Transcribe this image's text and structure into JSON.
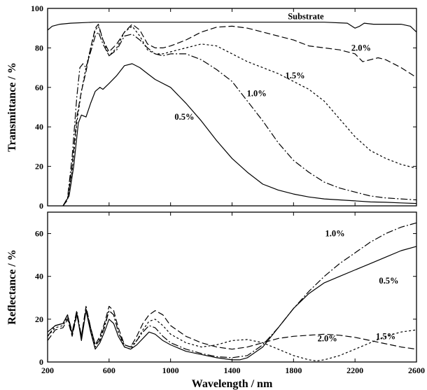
{
  "chart_data": [
    {
      "type": "line",
      "xlabel": "",
      "ylabel": "Transmittance / %",
      "xlim": [
        200,
        2600
      ],
      "ylim": [
        0,
        100
      ],
      "xticks": [
        200,
        600,
        1000,
        1400,
        1800,
        2200,
        2600
      ],
      "yticks": [
        0,
        20,
        40,
        60,
        80,
        100
      ],
      "xtick_labels_shown": false,
      "grid": false,
      "series": [
        {
          "name": "Substrate",
          "style": "solid",
          "x": [
            200,
            230,
            280,
            350,
            500,
            700,
            900,
            1200,
            1600,
            2000,
            2150,
            2200,
            2230,
            2260,
            2320,
            2400,
            2500,
            2560,
            2600
          ],
          "y": [
            89,
            91,
            92,
            92.5,
            93,
            93,
            93,
            93,
            93,
            93,
            92.5,
            90,
            91,
            92.5,
            92,
            92,
            92,
            91,
            88
          ]
        },
        {
          "name": "2.0%",
          "style": "long-dash",
          "x": [
            300,
            330,
            360,
            390,
            420,
            450,
            480,
            510,
            530,
            560,
            600,
            650,
            700,
            750,
            800,
            850,
            900,
            950,
            1000,
            1100,
            1200,
            1300,
            1400,
            1500,
            1600,
            1700,
            1800,
            1900,
            2000,
            2100,
            2200,
            2250,
            2300,
            2350,
            2400,
            2500,
            2600
          ],
          "y": [
            0,
            3,
            20,
            45,
            58,
            68,
            80,
            90,
            92,
            84,
            78,
            82,
            88,
            92,
            89,
            82,
            80,
            80,
            81,
            84,
            88,
            90.5,
            91,
            90,
            88,
            86,
            84,
            81,
            80,
            79,
            77,
            73,
            74,
            75,
            74,
            70,
            65
          ]
        },
        {
          "name": "1.5%",
          "style": "short-dash",
          "x": [
            300,
            330,
            360,
            390,
            420,
            450,
            480,
            510,
            530,
            560,
            600,
            650,
            700,
            750,
            800,
            850,
            900,
            950,
            1000,
            1100,
            1200,
            1300,
            1400,
            1500,
            1600,
            1700,
            1800,
            1900,
            2000,
            2100,
            2200,
            2300,
            2400,
            2500,
            2600
          ],
          "y": [
            0,
            3,
            18,
            42,
            58,
            70,
            80,
            89,
            91,
            84,
            76,
            80,
            88,
            91,
            86,
            79,
            77,
            77,
            78,
            80,
            82,
            81,
            77,
            73,
            70,
            67,
            63,
            59,
            53,
            44,
            35,
            28,
            24,
            21,
            19
          ]
        },
        {
          "name": "1.0%",
          "style": "dash-dot",
          "x": [
            300,
            330,
            360,
            390,
            410,
            430,
            450,
            480,
            510,
            530,
            560,
            600,
            650,
            700,
            750,
            800,
            850,
            900,
            950,
            1000,
            1100,
            1200,
            1300,
            1400,
            1500,
            1600,
            1700,
            1800,
            1900,
            2000,
            2100,
            2200,
            2300,
            2400,
            2500,
            2600
          ],
          "y": [
            0,
            4,
            25,
            55,
            70,
            72,
            70,
            78,
            86,
            88,
            82,
            76,
            79,
            86,
            87,
            84,
            80,
            77,
            76,
            77,
            77,
            74,
            69,
            63,
            53,
            43,
            32,
            23,
            17,
            12,
            9,
            7,
            5,
            4,
            3.5,
            3
          ]
        },
        {
          "name": "0.5%",
          "style": "solid",
          "x": [
            300,
            340,
            370,
            400,
            420,
            450,
            480,
            510,
            540,
            560,
            600,
            650,
            700,
            750,
            800,
            850,
            900,
            1000,
            1100,
            1200,
            1300,
            1400,
            1500,
            1600,
            1700,
            1800,
            1900,
            2000,
            2100,
            2200,
            2300,
            2400,
            2500,
            2600
          ],
          "y": [
            0,
            5,
            20,
            42,
            46,
            45,
            52,
            58,
            60,
            59,
            62,
            66,
            71,
            72,
            70,
            67,
            64,
            60,
            52,
            43,
            33,
            24,
            17,
            11,
            8,
            6,
            4.5,
            3.5,
            3,
            2.5,
            2,
            1.8,
            1.5,
            1.2
          ]
        }
      ],
      "annotations": [
        {
          "text": "Substrate",
          "x": 1880,
          "y": 96
        },
        {
          "text": "2.0%",
          "x": 2240,
          "y": 80
        },
        {
          "text": "1.5%",
          "x": 1810,
          "y": 66
        },
        {
          "text": "1.0%",
          "x": 1560,
          "y": 57
        },
        {
          "text": "0.5%",
          "x": 1090,
          "y": 45
        }
      ]
    },
    {
      "type": "line",
      "xlabel": "Wavelength / nm",
      "ylabel": "Reflectance / %",
      "xlim": [
        200,
        2600
      ],
      "ylim": [
        0,
        70
      ],
      "xticks": [
        200,
        600,
        1000,
        1400,
        1800,
        2200,
        2600
      ],
      "yticks": [
        0,
        20,
        40,
        60
      ],
      "grid": false,
      "series": [
        {
          "name": "1.0%",
          "style": "dash-dot",
          "x": [
            200,
            250,
            300,
            330,
            360,
            390,
            420,
            450,
            480,
            510,
            540,
            570,
            600,
            630,
            660,
            700,
            740,
            780,
            820,
            860,
            900,
            950,
            1000,
            1100,
            1200,
            1300,
            1400,
            1500,
            1600,
            1700,
            1800,
            1900,
            2000,
            2100,
            2200,
            2300,
            2400,
            2500,
            2600
          ],
          "y": [
            12,
            17,
            18,
            22,
            14,
            24,
            12,
            25,
            16,
            8,
            10,
            16,
            24,
            22,
            14,
            8,
            7,
            10,
            14,
            17,
            16,
            12,
            9,
            6,
            4,
            2.5,
            2,
            3,
            8,
            16,
            25,
            33,
            40,
            46,
            51,
            56,
            60,
            63,
            65
          ]
        },
        {
          "name": "0.5%",
          "style": "solid",
          "x": [
            200,
            250,
            300,
            330,
            360,
            390,
            420,
            450,
            480,
            510,
            540,
            570,
            600,
            630,
            660,
            700,
            740,
            780,
            820,
            860,
            900,
            950,
            1000,
            1100,
            1200,
            1300,
            1400,
            1450,
            1500,
            1600,
            1700,
            1800,
            1900,
            2000,
            2100,
            2200,
            2300,
            2400,
            2500,
            2600
          ],
          "y": [
            14,
            17,
            18,
            22,
            13,
            23,
            10,
            24,
            14,
            6,
            9,
            14,
            20,
            18,
            12,
            7,
            6,
            8,
            11,
            14,
            13,
            10,
            8,
            5,
            3.5,
            2,
            1,
            1,
            2,
            7,
            16,
            25,
            32,
            37,
            40,
            43,
            46,
            49,
            52,
            54
          ]
        },
        {
          "name": "2.0%",
          "style": "long-dash",
          "x": [
            200,
            250,
            300,
            330,
            360,
            390,
            420,
            450,
            480,
            510,
            540,
            570,
            600,
            630,
            660,
            700,
            740,
            780,
            820,
            860,
            900,
            950,
            1000,
            1100,
            1200,
            1300,
            1400,
            1500,
            1600,
            1700,
            1800,
            1900,
            2000,
            2100,
            2200,
            2300,
            2400,
            2500,
            2600
          ],
          "y": [
            10,
            15,
            16,
            20,
            12,
            22,
            12,
            26,
            16,
            8,
            12,
            18,
            26,
            24,
            16,
            8,
            7,
            12,
            18,
            22,
            24,
            22,
            17,
            12,
            9,
            7,
            6,
            7,
            9,
            11,
            12,
            12.5,
            13,
            12.5,
            11.5,
            10,
            8.5,
            7,
            6
          ]
        },
        {
          "name": "1.5%",
          "style": "short-dash",
          "x": [
            200,
            250,
            300,
            330,
            360,
            390,
            420,
            450,
            480,
            510,
            540,
            570,
            600,
            630,
            660,
            700,
            740,
            780,
            820,
            860,
            900,
            950,
            1000,
            1100,
            1200,
            1300,
            1400,
            1500,
            1600,
            1700,
            1800,
            1900,
            1950,
            2000,
            2100,
            2200,
            2300,
            2400,
            2500,
            2600
          ],
          "y": [
            12,
            16,
            17,
            21,
            13,
            23,
            11,
            25,
            15,
            7,
            11,
            17,
            24,
            22,
            14,
            7,
            6,
            10,
            15,
            19,
            20,
            17,
            13,
            9,
            7,
            8,
            10,
            10.5,
            9,
            6,
            3,
            1,
            0.5,
            1,
            3,
            6,
            9,
            12,
            14,
            15
          ]
        }
      ],
      "annotations": [
        {
          "text": "1.0%",
          "x": 2070,
          "y": 60
        },
        {
          "text": "0.5%",
          "x": 2420,
          "y": 38
        },
        {
          "text": "2.0%",
          "x": 2020,
          "y": 11
        },
        {
          "text": "1.5%",
          "x": 2400,
          "y": 12
        }
      ]
    }
  ]
}
